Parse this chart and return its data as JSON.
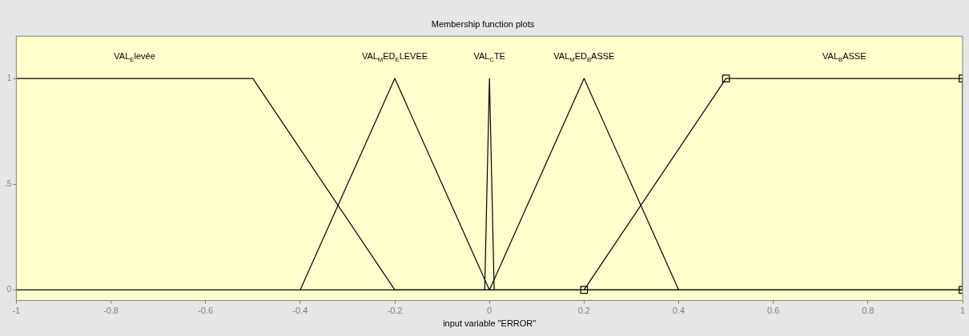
{
  "chart_data": {
    "type": "line",
    "title": "Membership function plots",
    "xlabel": "input variable \"ERROR\"",
    "series": [
      {
        "name": "VAL$_{E}$levée",
        "color": "#000000",
        "x": [
          -1,
          -0.5,
          -0.2,
          1
        ],
        "values": [
          1,
          1,
          0,
          0
        ]
      },
      {
        "name": "VAL$_{M}$ED$_{E}$LEVEE",
        "color": "#000000",
        "x": [
          -0.4,
          -0.2,
          0
        ],
        "values": [
          0,
          1,
          0
        ]
      },
      {
        "name": "VAL$_{C}$TE",
        "color": "#000000",
        "x": [
          -0.01,
          0,
          0.01
        ],
        "values": [
          0,
          1,
          0
        ]
      },
      {
        "name": "VAL$_{M}$ED$_{B}$ASSE",
        "color": "#000000",
        "x": [
          0,
          0.2,
          0.4
        ],
        "values": [
          0,
          1,
          0
        ]
      },
      {
        "name": "VAL$_{B}$ASSE",
        "color": "#000000",
        "marker": "square",
        "x": [
          0.2,
          0.5,
          1,
          1
        ],
        "values": [
          0,
          1,
          1,
          0
        ]
      }
    ],
    "xlim": [
      -1,
      1
    ],
    "xticks": [
      -1,
      -0.8,
      -0.6,
      -0.4,
      -0.2,
      0,
      0.2,
      0.4,
      0.6,
      0.8,
      1
    ],
    "ylim": [
      -0.05,
      1.2
    ],
    "yticks": [
      0,
      {
        "value": 0.5,
        "label": ".5"
      },
      1
    ],
    "ref_lines": [
      {
        "axis": "y",
        "value": 0,
        "color": "#000000"
      }
    ],
    "grid": false,
    "legend": false,
    "marker": "none",
    "line_style": "solid"
  }
}
